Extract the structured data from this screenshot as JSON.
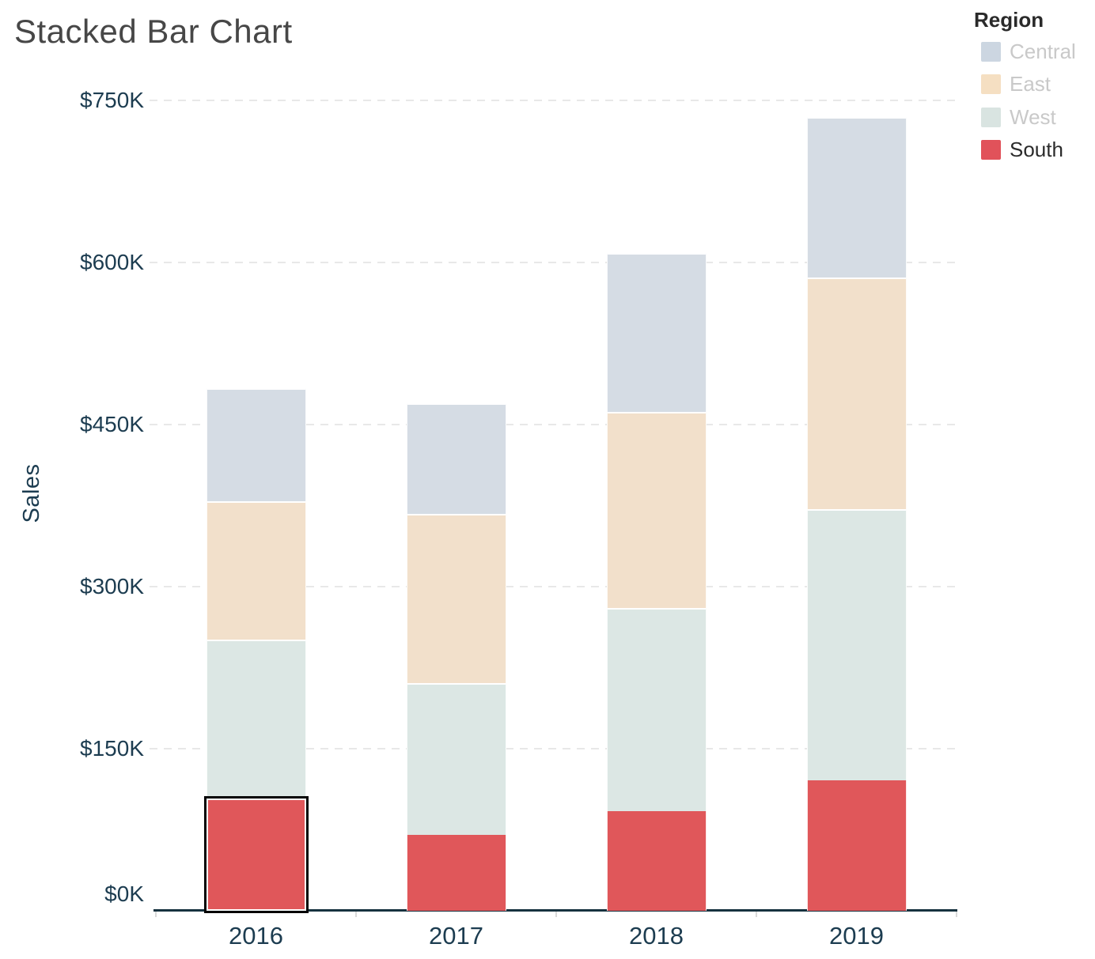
{
  "title": "Stacked Bar Chart",
  "legend": {
    "title": "Region",
    "items": [
      {
        "label": "Central",
        "swatch_color": "#ccd6e1",
        "dimmed": true
      },
      {
        "label": "East",
        "swatch_color": "#f5dfc2",
        "dimmed": true
      },
      {
        "label": "West",
        "swatch_color": "#d9e4e1",
        "dimmed": true
      },
      {
        "label": "South",
        "swatch_color": "#e1525a",
        "dimmed": false
      }
    ],
    "active_label_color": "#2b2b2b",
    "dimmed_label_color": "#c9c9c9"
  },
  "chart_data": {
    "type": "bar",
    "stacked": true,
    "title": "Stacked Bar Chart",
    "xlabel": "",
    "ylabel": "Sales",
    "categories": [
      "2016",
      "2017",
      "2018",
      "2019"
    ],
    "series": [
      {
        "name": "South",
        "values": [
          104,
          70,
          92,
          121
        ],
        "color": "#e0575a"
      },
      {
        "name": "West",
        "values": [
          147,
          141,
          188,
          251
        ],
        "color": "#dce7e4"
      },
      {
        "name": "East",
        "values": [
          128,
          156,
          182,
          214
        ],
        "color": "#f2e0cb"
      },
      {
        "name": "Central",
        "values": [
          105,
          103,
          147,
          149
        ],
        "color": "#d5dce4"
      }
    ],
    "stack_order": "South bottom, then West, East, Central on top",
    "values_unit": "thousand USD",
    "ylim": [
      0,
      750
    ],
    "ytick_step": 150,
    "ytick_labels": [
      "$0K",
      "$150K",
      "$300K",
      "$450K",
      "$600K",
      "$750K"
    ],
    "grid": "horizontal dashed",
    "legend_position": "top-right",
    "selected_mark": {
      "category": "2016",
      "series": "South"
    }
  },
  "colors": {
    "axis_text": "#1c3c50",
    "axis_line": "#16323f",
    "grid_line": "#e8e8e8",
    "title_text": "#474747",
    "selection_border": "#050505"
  }
}
